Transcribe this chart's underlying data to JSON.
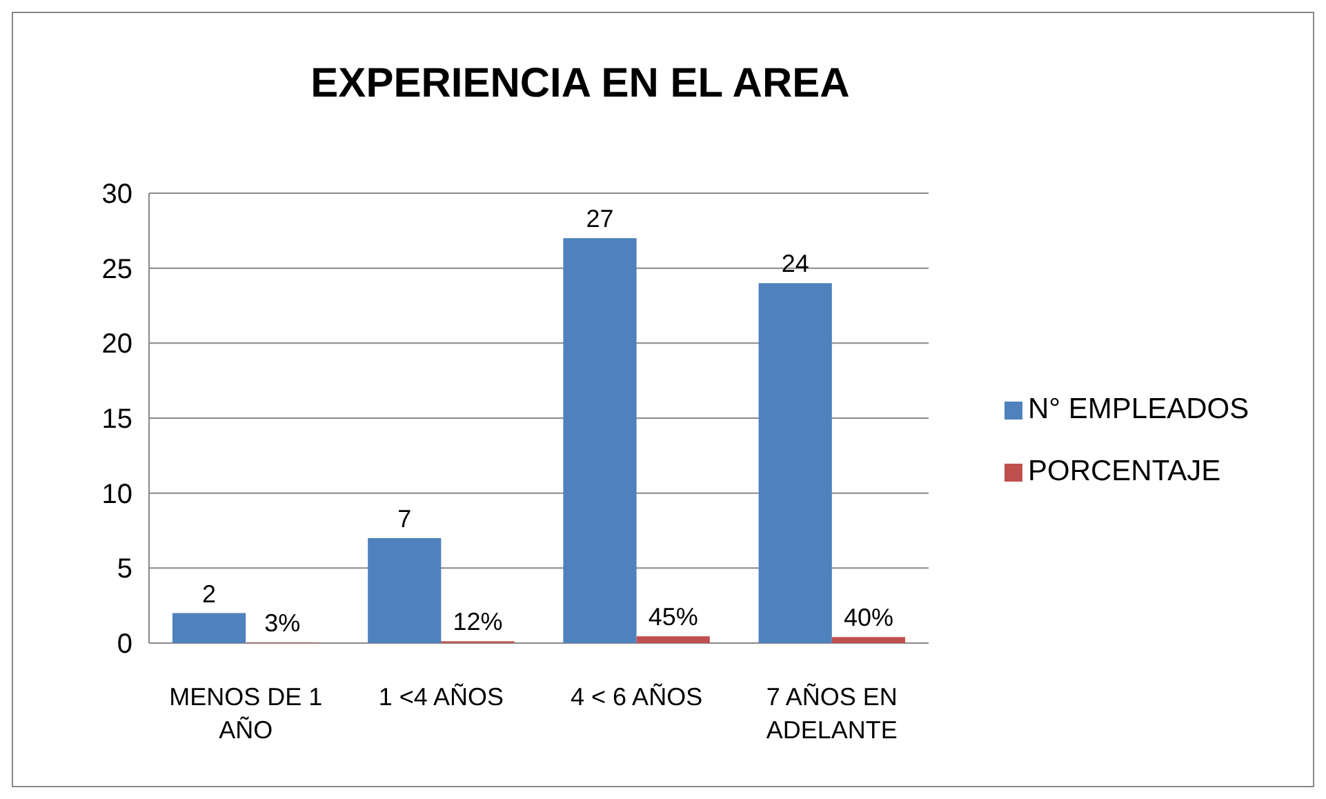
{
  "chart_data": {
    "type": "bar",
    "title": "EXPERIENCIA EN EL AREA",
    "categories": [
      "MENOS DE 1 AÑO",
      "1 <4 AÑOS",
      "4 < 6 AÑOS",
      "7 AÑOS EN ADELANTE"
    ],
    "series": [
      {
        "name": "N° EMPLEADOS",
        "color": "#4f81bd",
        "values": [
          2,
          7,
          27,
          24
        ],
        "value_labels": [
          "2",
          "7",
          "27",
          "24"
        ]
      },
      {
        "name": "PORCENTAJE",
        "color": "#c0504d",
        "values": [
          0.03,
          0.12,
          0.45,
          0.4
        ],
        "value_labels": [
          "3%",
          "12%",
          "45%",
          "40%"
        ]
      }
    ],
    "ylim": [
      0,
      30
    ],
    "yticks": [
      0,
      5,
      10,
      15,
      20,
      25,
      30
    ],
    "grid": "y",
    "legend": "right"
  }
}
